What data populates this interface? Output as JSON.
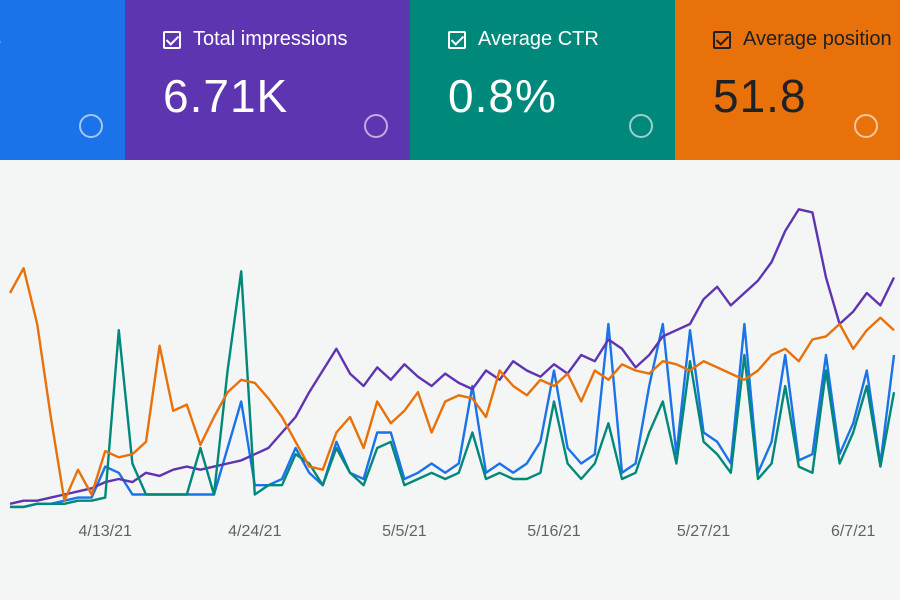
{
  "cards": [
    {
      "title": "s",
      "color": "#1a73e8"
    },
    {
      "title": "Total impressions",
      "value": "6.71K",
      "color": "#5e35b1"
    },
    {
      "title": "Average CTR",
      "value": "0.8%",
      "color": "#00897b"
    },
    {
      "title": "Average position",
      "value": "51.8",
      "color": "#e8710a"
    }
  ],
  "chart_data": {
    "type": "line",
    "categories": [
      null,
      null,
      null,
      null,
      null,
      null,
      null,
      "4/13/21",
      null,
      null,
      null,
      null,
      null,
      null,
      null,
      null,
      null,
      null,
      "4/24/21",
      null,
      null,
      null,
      null,
      null,
      null,
      null,
      null,
      null,
      null,
      "5/5/21",
      null,
      null,
      null,
      null,
      null,
      null,
      null,
      null,
      null,
      null,
      "5/16/21",
      null,
      null,
      null,
      null,
      null,
      null,
      null,
      null,
      null,
      null,
      "5/27/21",
      null,
      null,
      null,
      null,
      null,
      null,
      null,
      null,
      null,
      null,
      "6/7/21",
      null,
      null,
      null
    ],
    "series": [
      {
        "color": "#1a73e8",
        "values": [
          1,
          1,
          2,
          2,
          3,
          4,
          4,
          14,
          12,
          5,
          5,
          5,
          5,
          5,
          5,
          5,
          20,
          35,
          8,
          8,
          10,
          20,
          12,
          8,
          22,
          12,
          10,
          25,
          25,
          10,
          12,
          15,
          12,
          15,
          40,
          12,
          15,
          12,
          15,
          22,
          45,
          20,
          15,
          18,
          60,
          12,
          15,
          40,
          60,
          18,
          58,
          25,
          22,
          15,
          60,
          12,
          22,
          50,
          16,
          18,
          50,
          18,
          28,
          45,
          15,
          50
        ]
      },
      {
        "color": "#5e35b1",
        "values": [
          2,
          3,
          3,
          4,
          5,
          6,
          7,
          9,
          10,
          9,
          12,
          11,
          13,
          14,
          13,
          14,
          15,
          16,
          18,
          20,
          25,
          30,
          38,
          45,
          52,
          44,
          40,
          46,
          42,
          47,
          43,
          40,
          44,
          41,
          39,
          45,
          42,
          48,
          45,
          43,
          47,
          44,
          50,
          48,
          55,
          52,
          46,
          50,
          56,
          58,
          60,
          68,
          72,
          66,
          70,
          74,
          80,
          90,
          97,
          96,
          75,
          60,
          64,
          70,
          66,
          75
        ]
      },
      {
        "color": "#00897b",
        "values": [
          1,
          1,
          2,
          2,
          2,
          3,
          3,
          4,
          58,
          15,
          5,
          5,
          5,
          5,
          20,
          5,
          45,
          77,
          5,
          8,
          8,
          18,
          15,
          8,
          20,
          12,
          8,
          20,
          22,
          8,
          10,
          12,
          10,
          12,
          25,
          10,
          12,
          10,
          10,
          12,
          35,
          15,
          10,
          15,
          28,
          10,
          12,
          25,
          35,
          15,
          48,
          22,
          18,
          12,
          50,
          10,
          15,
          40,
          14,
          12,
          45,
          15,
          25,
          40,
          14,
          38
        ]
      },
      {
        "color": "#e8710a",
        "values": [
          70,
          78,
          60,
          30,
          3,
          13,
          5,
          19,
          17,
          18,
          22,
          53,
          32,
          34,
          21,
          30,
          38,
          42,
          41,
          36,
          30,
          22,
          14,
          13,
          25,
          30,
          20,
          35,
          28,
          32,
          38,
          25,
          35,
          37,
          36,
          30,
          45,
          40,
          37,
          42,
          40,
          44,
          35,
          45,
          42,
          47,
          45,
          44,
          48,
          47,
          45,
          48,
          46,
          44,
          42,
          45,
          50,
          52,
          48,
          55,
          56,
          60,
          52,
          58,
          62,
          58
        ]
      }
    ],
    "ylim": [
      0,
      100
    ]
  }
}
